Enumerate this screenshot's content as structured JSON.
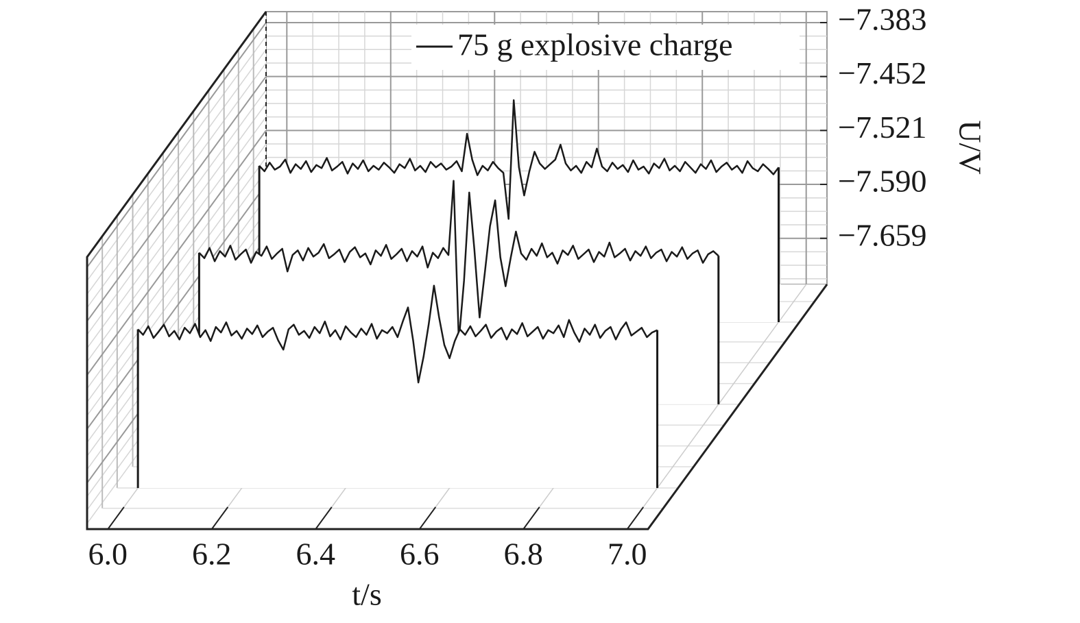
{
  "chart_data": {
    "type": "waterfall",
    "xlabel": "t/s",
    "ylabel": "U/V",
    "legend": "75 g explosive charge",
    "xlim": [
      5.96,
      7.04
    ],
    "xticks": [
      {
        "value": 6,
        "label": "6.0"
      },
      {
        "value": 6.2,
        "label": "6.2"
      },
      {
        "value": 6.4,
        "label": "6.4"
      },
      {
        "value": 6.6,
        "label": "6.6"
      },
      {
        "value": 6.8,
        "label": "6.8"
      },
      {
        "value": 7,
        "label": "7.0"
      }
    ],
    "ylim": [
      -7.718,
      -7.369
    ],
    "yticks": [
      {
        "value": -7.383,
        "label": "−7.383"
      },
      {
        "value": -7.452,
        "label": "−7.452"
      },
      {
        "value": -7.521,
        "label": "−7.521"
      },
      {
        "value": -7.59,
        "label": "−7.590"
      },
      {
        "value": -7.659,
        "label": "−7.659"
      }
    ],
    "grid": true,
    "x": [
      6.0,
      6.01,
      6.02,
      6.03,
      6.04,
      6.05,
      6.06,
      6.07,
      6.08,
      6.09,
      6.1,
      6.11,
      6.12,
      6.13,
      6.14,
      6.15,
      6.16,
      6.17,
      6.18,
      6.19,
      6.2,
      6.21,
      6.22,
      6.23,
      6.24,
      6.25,
      6.26,
      6.27,
      6.28,
      6.29,
      6.3,
      6.31,
      6.32,
      6.33,
      6.34,
      6.35,
      6.36,
      6.37,
      6.38,
      6.39,
      6.4,
      6.41,
      6.42,
      6.43,
      6.44,
      6.45,
      6.46,
      6.47,
      6.48,
      6.49,
      6.5,
      6.51,
      6.52,
      6.53,
      6.54,
      6.55,
      6.56,
      6.57,
      6.58,
      6.59,
      6.6,
      6.61,
      6.62,
      6.63,
      6.64,
      6.65,
      6.66,
      6.67,
      6.68,
      6.69,
      6.7,
      6.71,
      6.72,
      6.73,
      6.74,
      6.75,
      6.76,
      6.77,
      6.78,
      6.79,
      6.8,
      6.81,
      6.82,
      6.83,
      6.84,
      6.85,
      6.86,
      6.87,
      6.88,
      6.89,
      6.9,
      6.91,
      6.92,
      6.93,
      6.94,
      6.95,
      6.96,
      6.97,
      6.98,
      6.99,
      7.0
    ],
    "series": [
      {
        "color": "#1a1a1a",
        "values": [
          -7.515,
          -7.522,
          -7.511,
          -7.526,
          -7.518,
          -7.509,
          -7.524,
          -7.517,
          -7.528,
          -7.513,
          -7.52,
          -7.508,
          -7.525,
          -7.516,
          -7.53,
          -7.512,
          -7.519,
          -7.506,
          -7.523,
          -7.517,
          -7.527,
          -7.514,
          -7.521,
          -7.51,
          -7.525,
          -7.518,
          -7.513,
          -7.529,
          -7.541,
          -7.515,
          -7.509,
          -7.522,
          -7.517,
          -7.526,
          -7.512,
          -7.52,
          -7.505,
          -7.524,
          -7.516,
          -7.528,
          -7.511,
          -7.519,
          -7.525,
          -7.514,
          -7.522,
          -7.508,
          -7.527,
          -7.516,
          -7.52,
          -7.512,
          -7.525,
          -7.505,
          -7.487,
          -7.53,
          -7.583,
          -7.55,
          -7.508,
          -7.459,
          -7.5,
          -7.535,
          -7.552,
          -7.53,
          -7.515,
          -7.522,
          -7.511,
          -7.524,
          -7.517,
          -7.509,
          -7.526,
          -7.518,
          -7.513,
          -7.528,
          -7.515,
          -7.521,
          -7.507,
          -7.524,
          -7.518,
          -7.512,
          -7.527,
          -7.516,
          -7.52,
          -7.51,
          -7.525,
          -7.503,
          -7.519,
          -7.531,
          -7.514,
          -7.522,
          -7.509,
          -7.526,
          -7.517,
          -7.512,
          -7.528,
          -7.515,
          -7.506,
          -7.523,
          -7.518,
          -7.513,
          -7.525,
          -7.519,
          -7.516
        ]
      },
      {
        "color": "#1a1a1a",
        "values": [
          -7.524,
          -7.531,
          -7.518,
          -7.535,
          -7.522,
          -7.529,
          -7.515,
          -7.533,
          -7.526,
          -7.52,
          -7.537,
          -7.523,
          -7.528,
          -7.516,
          -7.532,
          -7.525,
          -7.519,
          -7.548,
          -7.527,
          -7.521,
          -7.534,
          -7.518,
          -7.529,
          -7.524,
          -7.513,
          -7.531,
          -7.526,
          -7.52,
          -7.536,
          -7.523,
          -7.517,
          -7.53,
          -7.525,
          -7.539,
          -7.521,
          -7.528,
          -7.514,
          -7.532,
          -7.526,
          -7.519,
          -7.535,
          -7.522,
          -7.529,
          -7.516,
          -7.543,
          -7.524,
          -7.531,
          -7.518,
          -7.527,
          -7.432,
          -7.637,
          -7.56,
          -7.447,
          -7.52,
          -7.607,
          -7.55,
          -7.49,
          -7.457,
          -7.53,
          -7.567,
          -7.53,
          -7.497,
          -7.525,
          -7.533,
          -7.519,
          -7.528,
          -7.512,
          -7.53,
          -7.524,
          -7.538,
          -7.521,
          -7.527,
          -7.515,
          -7.532,
          -7.526,
          -7.52,
          -7.536,
          -7.523,
          -7.529,
          -7.511,
          -7.53,
          -7.525,
          -7.519,
          -7.534,
          -7.522,
          -7.528,
          -7.516,
          -7.531,
          -7.524,
          -7.52,
          -7.535,
          -7.523,
          -7.529,
          -7.517,
          -7.532,
          -7.525,
          -7.521,
          -7.537,
          -7.526,
          -7.522,
          -7.528
        ]
      },
      {
        "color": "#1a1a1a",
        "values": [
          -7.518,
          -7.525,
          -7.514,
          -7.523,
          -7.519,
          -7.51,
          -7.527,
          -7.516,
          -7.522,
          -7.512,
          -7.526,
          -7.517,
          -7.521,
          -7.508,
          -7.524,
          -7.519,
          -7.513,
          -7.528,
          -7.515,
          -7.522,
          -7.511,
          -7.525,
          -7.518,
          -7.523,
          -7.514,
          -7.52,
          -7.527,
          -7.516,
          -7.521,
          -7.509,
          -7.524,
          -7.518,
          -7.526,
          -7.513,
          -7.52,
          -7.515,
          -7.523,
          -7.519,
          -7.512,
          -7.525,
          -7.477,
          -7.51,
          -7.53,
          -7.518,
          -7.524,
          -7.513,
          -7.521,
          -7.527,
          -7.586,
          -7.434,
          -7.52,
          -7.556,
          -7.525,
          -7.5,
          -7.515,
          -7.522,
          -7.516,
          -7.51,
          -7.491,
          -7.515,
          -7.524,
          -7.518,
          -7.527,
          -7.513,
          -7.52,
          -7.496,
          -7.519,
          -7.525,
          -7.514,
          -7.522,
          -7.517,
          -7.526,
          -7.511,
          -7.523,
          -7.519,
          -7.528,
          -7.515,
          -7.521,
          -7.509,
          -7.524,
          -7.518,
          -7.525,
          -7.513,
          -7.52,
          -7.527,
          -7.516,
          -7.522,
          -7.511,
          -7.526,
          -7.519,
          -7.514,
          -7.523,
          -7.518,
          -7.527,
          -7.512,
          -7.521,
          -7.525,
          -7.516,
          -7.522,
          -7.529,
          -7.52
        ]
      }
    ]
  }
}
